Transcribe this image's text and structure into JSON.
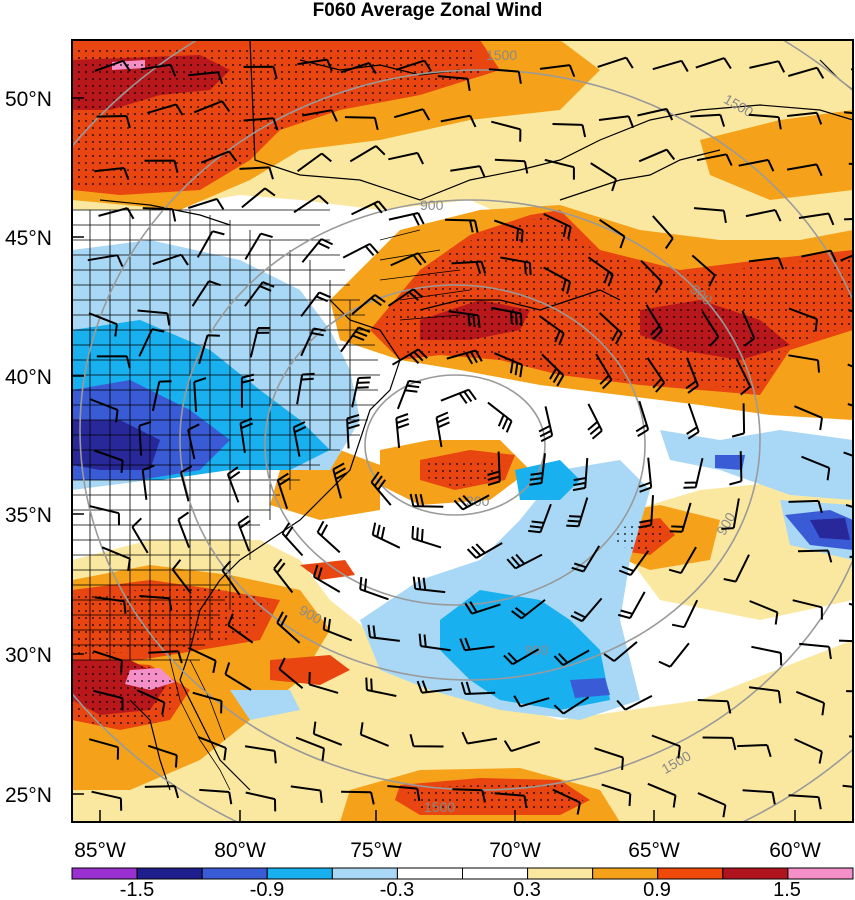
{
  "title": "F060 Average Zonal Wind",
  "lat_labels": [
    "50°N",
    "45°N",
    "40°N",
    "35°N",
    "30°N",
    "25°N"
  ],
  "lon_labels": [
    "85°W",
    "80°W",
    "75°W",
    "70°W",
    "65°W",
    "60°W"
  ],
  "colorbar": {
    "labels": [
      "-1.5",
      "-0.9",
      "-0.3",
      "0.3",
      "0.9",
      "1.5"
    ],
    "colors": [
      "#9b30d0",
      "#1e1e8c",
      "#3a5bd6",
      "#19b0f0",
      "#a8d8f5",
      "#ffffff",
      "#ffffff",
      "#fbe8a0",
      "#f5a21a",
      "#f04a0a",
      "#b0141e",
      "#f58fc8"
    ]
  },
  "contour_labels": [
    "1500",
    "1500",
    "900",
    "900",
    "900",
    "900",
    "900",
    "300",
    "1500",
    "1500"
  ],
  "colors": {
    "red": "#e84510",
    "dark_red": "#b8171c",
    "orange": "#f5a21a",
    "yellow": "#fbe8a0",
    "light_blue": "#a8d8f5",
    "blue": "#19b0f0",
    "mid_blue": "#3a5bd6",
    "dark_blue": "#28289a",
    "pink": "#f58fc8",
    "contour_gray": "#9a9a9a"
  }
}
